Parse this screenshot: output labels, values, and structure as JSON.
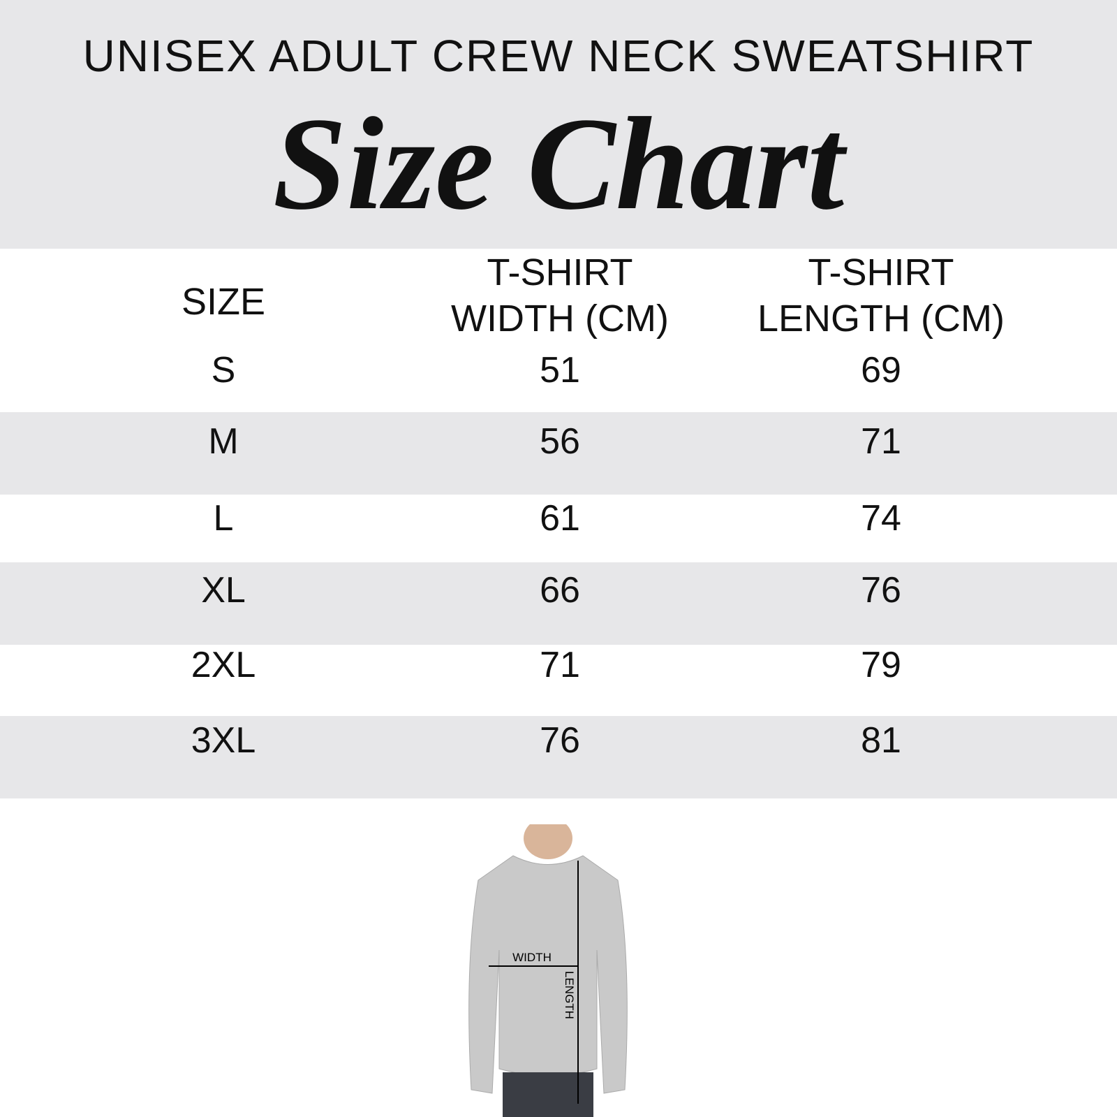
{
  "header": {
    "title": "UNISEX ADULT CREW NECK SWEATSHIRT",
    "subtitle": "Size Chart"
  },
  "table": {
    "columns": [
      [
        "SIZE"
      ],
      [
        "T-SHIRT",
        "WIDTH (CM)"
      ],
      [
        "T-SHIRT",
        "LENGTH (CM)"
      ]
    ],
    "rows": [
      [
        "S",
        51,
        69
      ],
      [
        "M",
        56,
        71
      ],
      [
        "L",
        61,
        74
      ],
      [
        "XL",
        66,
        76
      ],
      [
        "2XL",
        71,
        79
      ],
      [
        "3XL",
        76,
        81
      ]
    ]
  },
  "diagram": {
    "width_label": "WIDTH",
    "length_label": "LENGTH"
  }
}
